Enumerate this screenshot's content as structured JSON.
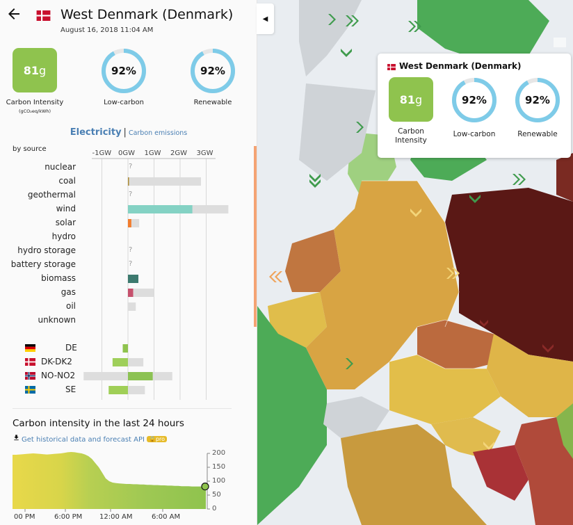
{
  "zone": {
    "name": "West Denmark (Denmark)",
    "datetime": "August 16, 2018 11:04 AM",
    "carbon_intensity": {
      "value": "81",
      "unit": "g",
      "label": "Carbon Intensity",
      "sublabel": "(gCO₂eq/kWh)",
      "color": "#8fc34e"
    },
    "low_carbon": {
      "value": "92%",
      "fraction": 0.92,
      "label": "Low-carbon"
    },
    "renewable": {
      "value": "92%",
      "fraction": 0.92,
      "label": "Renewable"
    }
  },
  "tabs": {
    "electricity": "Electricity",
    "separator": "|",
    "carbon_emissions": "Carbon emissions"
  },
  "by_source_label": "by source",
  "production_axis": {
    "ticks": [
      "-1GW",
      "0GW",
      "1GW",
      "2GW",
      "3GW"
    ],
    "tick_values": [
      -1000,
      0,
      1000,
      2000,
      3000
    ]
  },
  "production": [
    {
      "name": "nuclear",
      "value": null,
      "capacity": null,
      "color": "#aaaaaa"
    },
    {
      "name": "coal",
      "value": 20,
      "capacity": 2800,
      "color": "#ac8c35"
    },
    {
      "name": "geothermal",
      "value": null,
      "capacity": null,
      "color": "#aaaaaa"
    },
    {
      "name": "wind",
      "value": 2470,
      "capacity": 3850,
      "color": "#84d2c4"
    },
    {
      "name": "solar",
      "value": 130,
      "capacity": 430,
      "color": "#f27d2e"
    },
    {
      "name": "hydro",
      "value": 0,
      "capacity": 0,
      "color": "#2772b2"
    },
    {
      "name": "hydro storage",
      "value": null,
      "capacity": null,
      "color": "#aaaaaa"
    },
    {
      "name": "battery storage",
      "value": null,
      "capacity": null,
      "color": "#aaaaaa"
    },
    {
      "name": "biomass",
      "value": 400,
      "capacity": 400,
      "color": "#3d7a6f"
    },
    {
      "name": "gas",
      "value": 200,
      "capacity": 1000,
      "color": "#c6516d"
    },
    {
      "name": "oil",
      "value": 0,
      "capacity": 300,
      "color": "#867d66"
    },
    {
      "name": "unknown",
      "value": 0,
      "capacity": 0,
      "color": "#aaaaaa"
    }
  ],
  "exchanges": [
    {
      "name": "DE",
      "flag": "de",
      "value": -200,
      "capacity": -200,
      "color": "#8fc34e"
    },
    {
      "name": "DK-DK2",
      "flag": "dk",
      "value": -590,
      "capacity": 590,
      "color": "#9fcf5a"
    },
    {
      "name": "NO-NO2",
      "flag": "no",
      "value": 950,
      "capacity": -1700,
      "capacity_max": 1700,
      "color": "#8cc253"
    },
    {
      "name": "SE",
      "flag": "se",
      "value": -740,
      "capacity": 650,
      "color": "#a0cf57"
    }
  ],
  "history": {
    "title": "Carbon intensity in the last 24 hours",
    "link": "Get historical data and forecast API",
    "badge": "pro",
    "y_ticks": [
      "200",
      "150",
      "100",
      "50",
      "0"
    ],
    "y_tick_values": [
      200,
      150,
      100,
      50,
      0
    ],
    "x_ticks": [
      "00 PM",
      "6:00 PM",
      "12:00 AM",
      "6:00 AM"
    ],
    "series": [
      195,
      195,
      196,
      197,
      198,
      199,
      200,
      199,
      198,
      197,
      196,
      197,
      198,
      199,
      200,
      202,
      204,
      205,
      204,
      202,
      200,
      196,
      190,
      180,
      165,
      150,
      130,
      110,
      100,
      95,
      93,
      92,
      91,
      90,
      90,
      89,
      89,
      88,
      88,
      87,
      87,
      86,
      86,
      85,
      85,
      84,
      84,
      83,
      83,
      82,
      82,
      82,
      81,
      81,
      81,
      81,
      81
    ]
  },
  "tooltip": {
    "title": "West Denmark (Denmark)",
    "ci_value": "81",
    "ci_unit": "g",
    "ci_label": "Carbon Intensity",
    "low_carbon": "92%",
    "low_carbon_label": "Low-carbon",
    "renewable": "92%",
    "renewable_label": "Renewable"
  },
  "colors": {
    "accent": "#4a7fb3",
    "ring": "#7ecbe8",
    "ring_bg": "#e6e6e6",
    "capacity_bar": "#dddddd",
    "pro_badge": "#e6bb2a"
  }
}
